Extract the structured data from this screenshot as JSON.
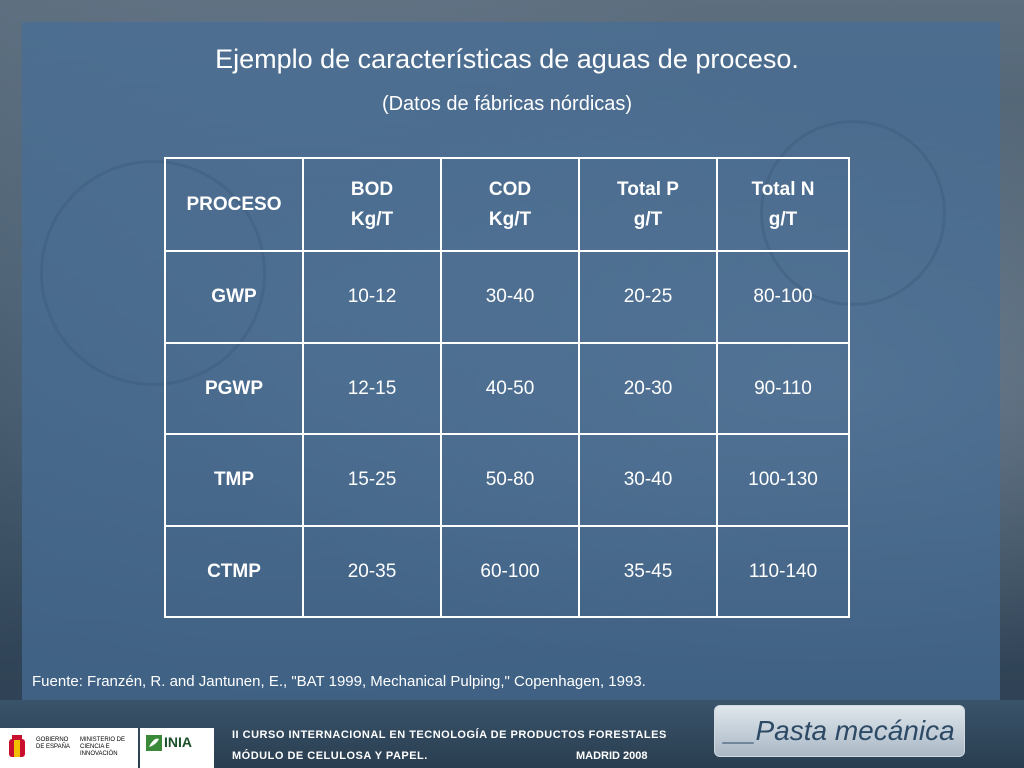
{
  "slide": {
    "title": "Ejemplo de características de aguas de proceso.",
    "subtitle": "(Datos de fábricas nórdicas)"
  },
  "table": {
    "headers": [
      {
        "line1": "PROCESO",
        "line2": ""
      },
      {
        "line1": "BOD",
        "line2": "Kg/T"
      },
      {
        "line1": "COD",
        "line2": "Kg/T"
      },
      {
        "line1": "Total P",
        "line2": "g/T"
      },
      {
        "line1": "Total N",
        "line2": "g/T"
      }
    ],
    "rows": [
      {
        "proceso": "GWP",
        "bod": "10-12",
        "cod": "30-40",
        "total_p": "20-25",
        "total_n": "80-100"
      },
      {
        "proceso": "PGWP",
        "bod": "12-15",
        "cod": "40-50",
        "total_p": "20-30",
        "total_n": "90-110"
      },
      {
        "proceso": "TMP",
        "bod": "15-25",
        "cod": "50-80",
        "total_p": "30-40",
        "total_n": "100-130"
      },
      {
        "proceso": "CTMP",
        "bod": "20-35",
        "cod": "60-100",
        "total_p": "35-45",
        "total_n": "110-140"
      }
    ]
  },
  "source": "Fuente:  Franzén, R. and Jantunen, E., \"BAT 1999, Mechanical Pulping,\"  Copenhagen, 1993.",
  "footer": {
    "gov_text": "GOBIERNO DE ESPAÑA",
    "ministry_text": "MINISTERIO DE CIENCIA E INNOVACIÓN",
    "inia_label": "INIA",
    "course_line1": "II CURSO INTERNACIONAL EN TECNOLOGÍA DE PRODUCTOS FORESTALES",
    "course_line2": "MÓDULO DE CELULOSA Y PAPEL.",
    "course_date": "MADRID 2008",
    "section_button": "__Pasta mecánica"
  },
  "colors": {
    "panel": "#466e96",
    "text": "#ffffff",
    "button_text": "#2c4a66"
  }
}
